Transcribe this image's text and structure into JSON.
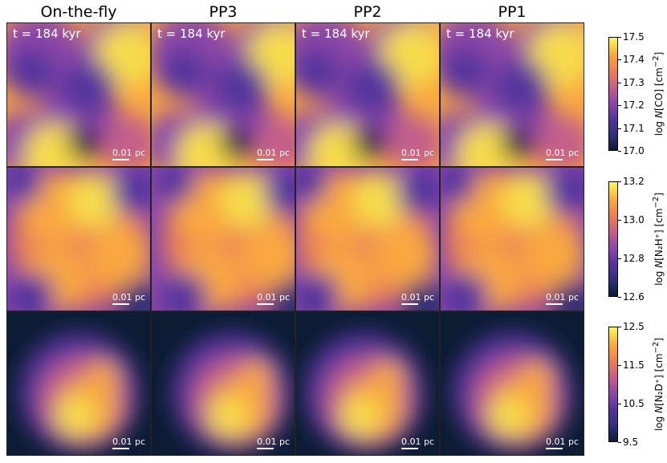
{
  "columns": [
    "On-the-fly",
    "PP3",
    "PP2",
    "PP1"
  ],
  "time_label": "t = 184 kyr",
  "scale_bar": {
    "value": "0.01",
    "unit": "pc"
  },
  "rows": [
    {
      "colorbar": {
        "label_pre": "log ",
        "label_var": "N",
        "label_post": "[CO] [cm",
        "label_sup": "−2",
        "label_end": "]",
        "ticks": [
          "17.5",
          "17.4",
          "17.3",
          "17.2",
          "17.1",
          "17.0"
        ]
      }
    },
    {
      "colorbar": {
        "label_pre": "log ",
        "label_var": "N",
        "label_post": "[N₂H⁺] [cm",
        "label_sup": "−2",
        "label_end": "]",
        "ticks": [
          "13.2",
          "13.0",
          "12.8",
          "12.6"
        ]
      }
    },
    {
      "colorbar": {
        "label_pre": "log ",
        "label_var": "N",
        "label_post": "[N₂D⁺] [cm",
        "label_sup": "−2",
        "label_end": "]",
        "ticks": [
          "12.5",
          "11.5",
          "10.5",
          "9.5"
        ]
      }
    }
  ],
  "chart_data": {
    "type": "heatmap",
    "grid": {
      "rows": 3,
      "columns": 4
    },
    "colorbar_ranges": [
      [
        17.0,
        17.5
      ],
      [
        12.6,
        13.2
      ],
      [
        9.5,
        12.5
      ]
    ],
    "colormap": [
      "#0b1c33",
      "#2b2e71",
      "#55359d",
      "#8c47a8",
      "#c35f8a",
      "#e97e5a",
      "#f9a740",
      "#f7dc4c",
      "#f5f76a"
    ]
  }
}
